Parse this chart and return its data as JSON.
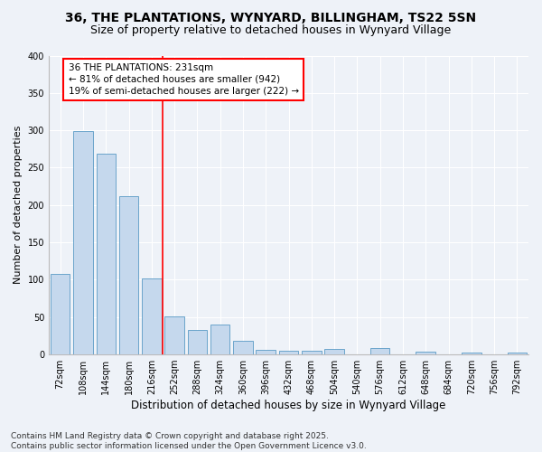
{
  "title1": "36, THE PLANTATIONS, WYNYARD, BILLINGHAM, TS22 5SN",
  "title2": "Size of property relative to detached houses in Wynyard Village",
  "xlabel": "Distribution of detached houses by size in Wynyard Village",
  "ylabel": "Number of detached properties",
  "categories": [
    "72sqm",
    "108sqm",
    "144sqm",
    "180sqm",
    "216sqm",
    "252sqm",
    "288sqm",
    "324sqm",
    "360sqm",
    "396sqm",
    "432sqm",
    "468sqm",
    "504sqm",
    "540sqm",
    "576sqm",
    "612sqm",
    "648sqm",
    "684sqm",
    "720sqm",
    "756sqm",
    "792sqm"
  ],
  "values": [
    108,
    299,
    269,
    212,
    102,
    51,
    33,
    40,
    18,
    6,
    5,
    5,
    7,
    0,
    8,
    0,
    4,
    0,
    2,
    0,
    3
  ],
  "bar_color": "#c5d8ed",
  "bar_edge_color": "#5a9ac5",
  "vline_index": 4,
  "annotation_text": "36 THE PLANTATIONS: 231sqm\n← 81% of detached houses are smaller (942)\n19% of semi-detached houses are larger (222) →",
  "annotation_box_color": "white",
  "annotation_box_edge_color": "red",
  "vline_color": "red",
  "ylim": [
    0,
    400
  ],
  "yticks": [
    0,
    50,
    100,
    150,
    200,
    250,
    300,
    350,
    400
  ],
  "bg_color": "#eef2f8",
  "grid_color": "#ffffff",
  "footnote": "Contains HM Land Registry data © Crown copyright and database right 2025.\nContains public sector information licensed under the Open Government Licence v3.0.",
  "title1_fontsize": 10,
  "title2_fontsize": 9,
  "xlabel_fontsize": 8.5,
  "ylabel_fontsize": 8,
  "tick_fontsize": 7,
  "annotation_fontsize": 7.5,
  "footnote_fontsize": 6.5
}
